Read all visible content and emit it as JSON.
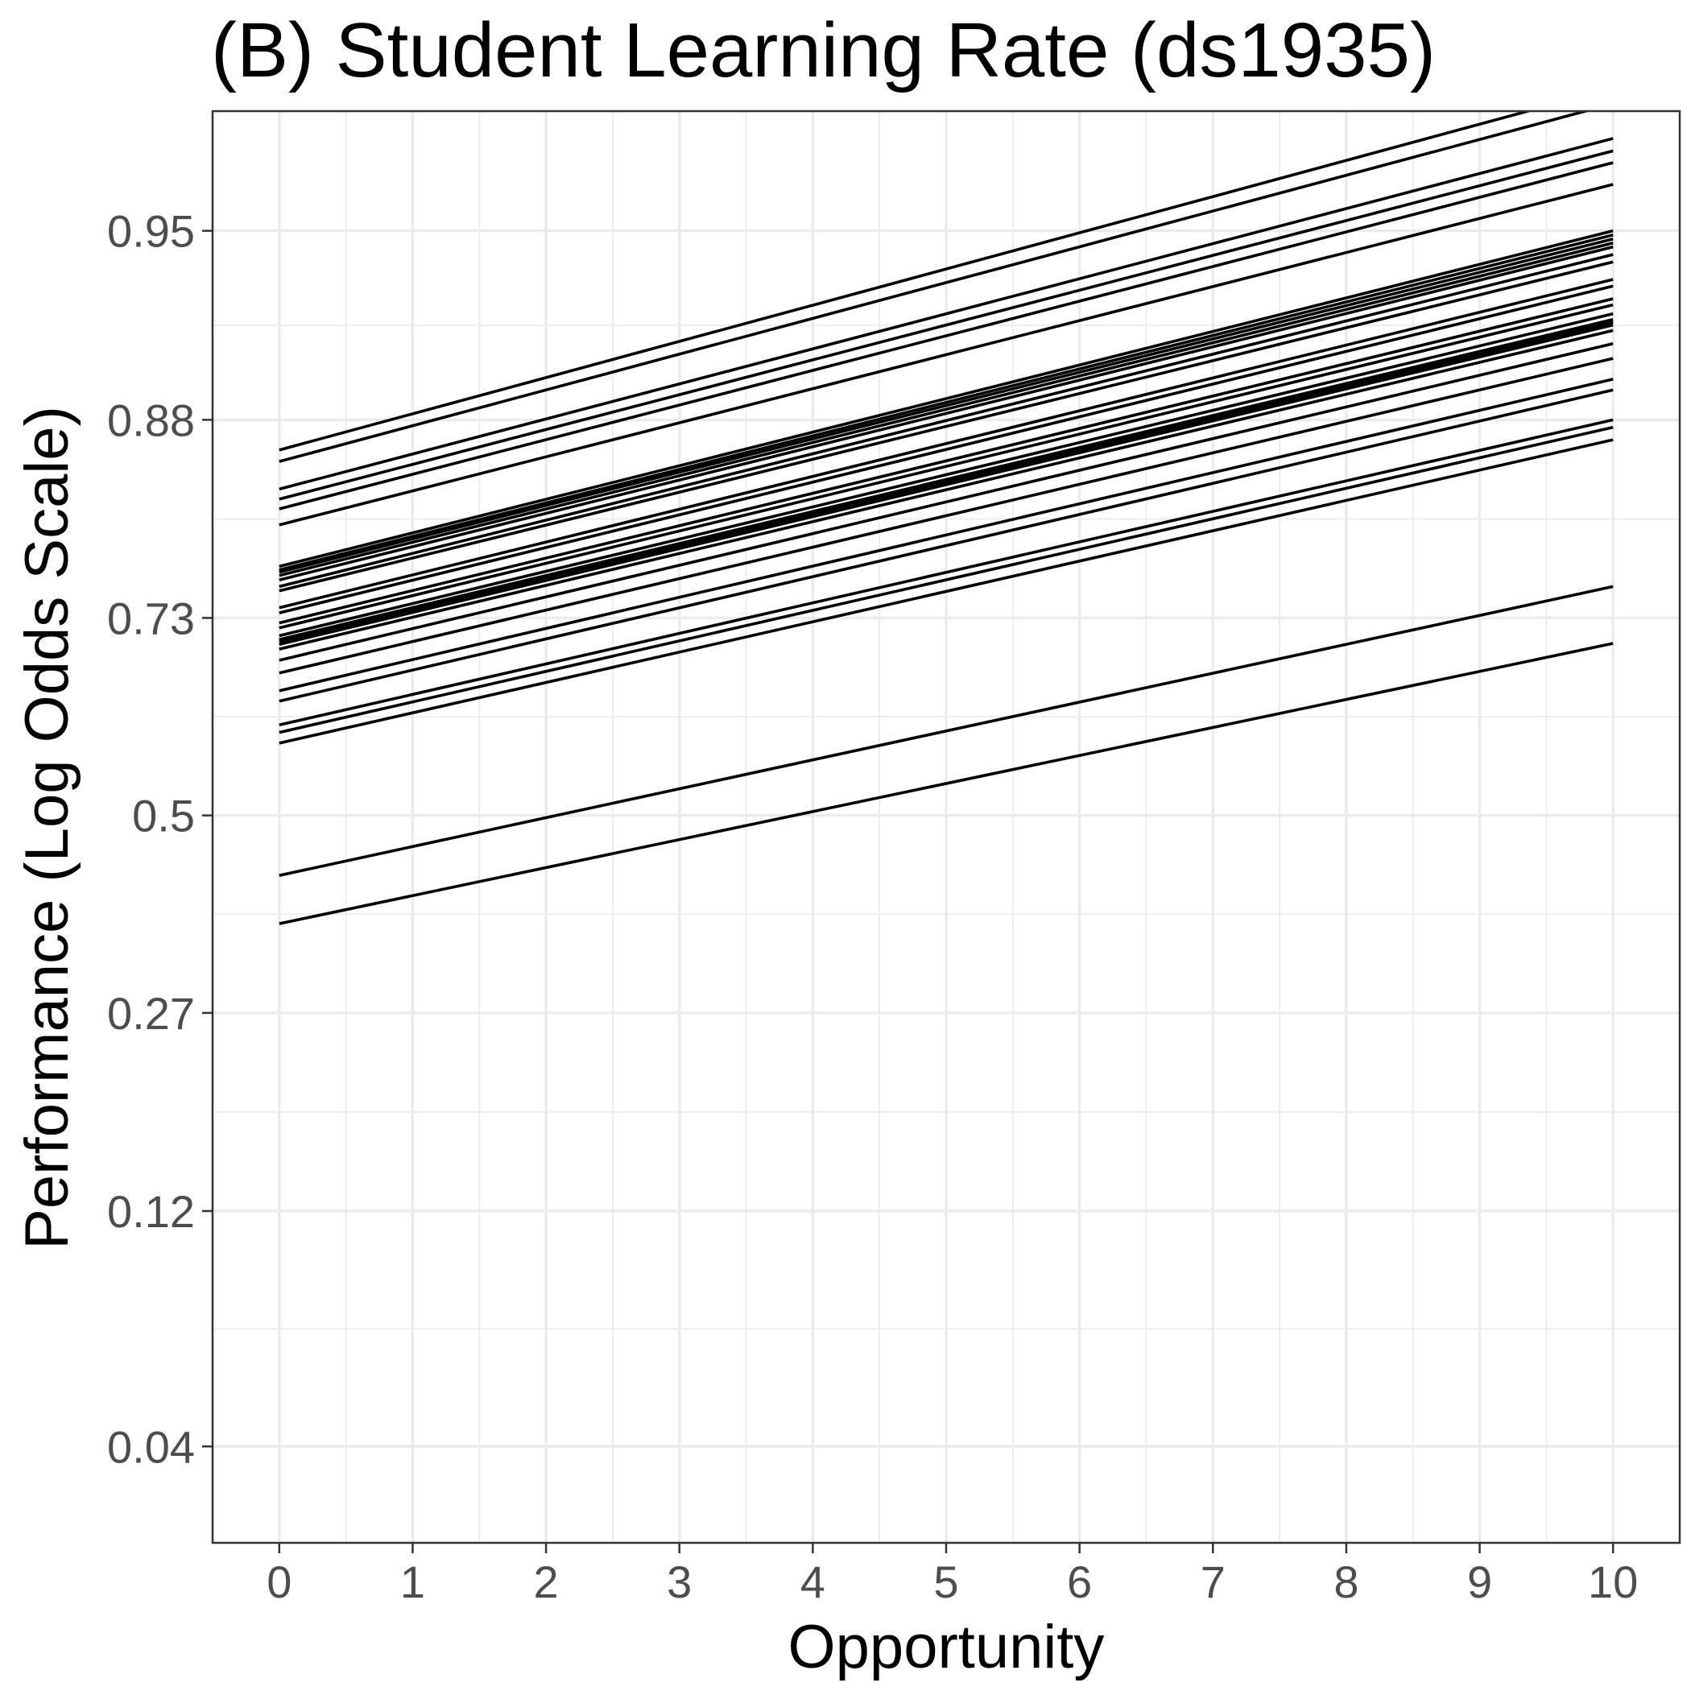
{
  "chart_data": {
    "type": "line",
    "title": "(B) Student Learning Rate (ds1935)",
    "xlabel": "Opportunity",
    "ylabel": "Performance (Log Odds Scale)",
    "x_ticks": [
      "0",
      "1",
      "2",
      "3",
      "4",
      "5",
      "6",
      "7",
      "8",
      "9",
      "10"
    ],
    "y_ticks": [
      {
        "label": "0.04",
        "value": 0.04
      },
      {
        "label": "0.12",
        "value": 0.12
      },
      {
        "label": "0.27",
        "value": 0.27
      },
      {
        "label": "0.5",
        "value": 0.5
      },
      {
        "label": "0.73",
        "value": 0.73
      },
      {
        "label": "0.88",
        "value": 0.88
      },
      {
        "label": "0.95",
        "value": 0.95
      }
    ],
    "y_scale": "logit",
    "xlim": [
      -0.5,
      10.5
    ],
    "ylim": [
      0.025,
      0.972
    ],
    "grid": true,
    "x": [
      0,
      10
    ],
    "series": [
      {
        "values": [
          0.863,
          0.975
        ]
      },
      {
        "values": [
          0.856,
          0.973
        ]
      },
      {
        "values": [
          0.838,
          0.968
        ]
      },
      {
        "values": [
          0.831,
          0.966
        ]
      },
      {
        "values": [
          0.824,
          0.964
        ]
      },
      {
        "values": [
          0.812,
          0.96
        ]
      },
      {
        "values": [
          0.778,
          0.95
        ]
      },
      {
        "values": [
          0.775,
          0.949
        ]
      },
      {
        "values": [
          0.773,
          0.948
        ]
      },
      {
        "values": [
          0.77,
          0.947
        ]
      },
      {
        "values": [
          0.766,
          0.946
        ]
      },
      {
        "values": [
          0.76,
          0.944
        ]
      },
      {
        "values": [
          0.756,
          0.942
        ]
      },
      {
        "values": [
          0.74,
          0.937
        ]
      },
      {
        "values": [
          0.735,
          0.935
        ]
      },
      {
        "values": [
          0.725,
          0.931
        ]
      },
      {
        "values": [
          0.72,
          0.929
        ]
      },
      {
        "values": [
          0.712,
          0.926
        ]
      },
      {
        "values": [
          0.708,
          0.924
        ]
      },
      {
        "values": [
          0.706,
          0.923
        ]
      },
      {
        "values": [
          0.703,
          0.922
        ]
      },
      {
        "values": [
          0.698,
          0.92
        ]
      },
      {
        "values": [
          0.686,
          0.915
        ]
      },
      {
        "values": [
          0.672,
          0.909
        ]
      },
      {
        "values": [
          0.652,
          0.9
        ]
      },
      {
        "values": [
          0.64,
          0.895
        ]
      },
      {
        "values": [
          0.612,
          0.88
        ]
      },
      {
        "values": [
          0.603,
          0.876
        ]
      },
      {
        "values": [
          0.59,
          0.869
        ]
      },
      {
        "values": [
          0.425,
          0.76
        ]
      },
      {
        "values": [
          0.367,
          0.704
        ]
      }
    ]
  }
}
